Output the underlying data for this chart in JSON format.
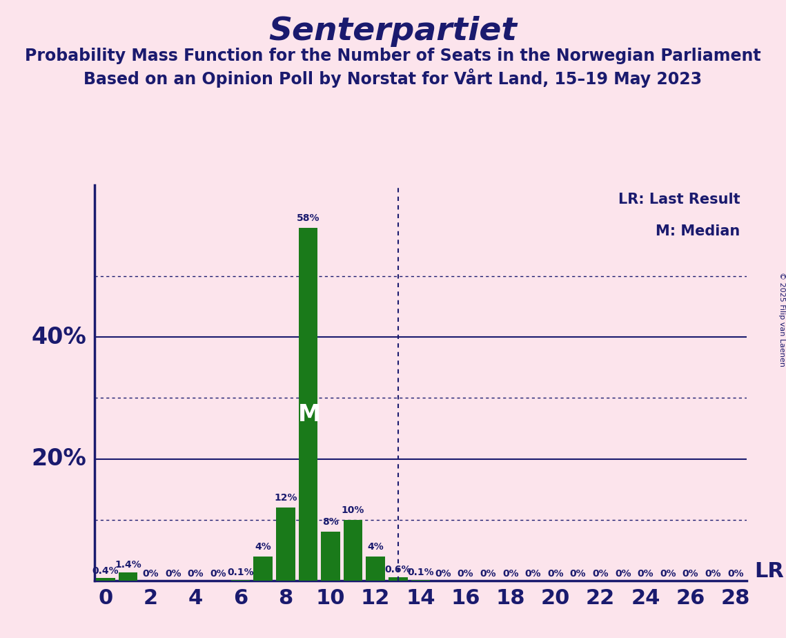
{
  "title": "Senterpartiet",
  "subtitle1": "Probability Mass Function for the Number of Seats in the Norwegian Parliament",
  "subtitle2": "Based on an Opinion Poll by Norstat for Vårt Land, 15–19 May 2023",
  "copyright": "© 2025 Filip van Laenen",
  "background_color": "#fce4ec",
  "bar_color": "#1a7a1a",
  "title_color": "#1a1a6e",
  "axis_color": "#1a1a6e",
  "text_color": "#1a1a6e",
  "seats": [
    0,
    1,
    2,
    3,
    4,
    5,
    6,
    7,
    8,
    9,
    10,
    11,
    12,
    13,
    14,
    15,
    16,
    17,
    18,
    19,
    20,
    21,
    22,
    23,
    24,
    25,
    26,
    27,
    28
  ],
  "probabilities": [
    0.4,
    1.4,
    0,
    0,
    0,
    0,
    0.1,
    4,
    12,
    58,
    8,
    10,
    4,
    0.6,
    0.1,
    0,
    0,
    0,
    0,
    0,
    0,
    0,
    0,
    0,
    0,
    0,
    0,
    0,
    0
  ],
  "labels": [
    "0.4%",
    "1.4%",
    "0%",
    "0%",
    "0%",
    "0%",
    "0.1%",
    "4%",
    "12%",
    "58%",
    "8%",
    "10%",
    "4%",
    "0.6%",
    "0.1%",
    "0%",
    "0%",
    "0%",
    "0%",
    "0%",
    "0%",
    "0%",
    "0%",
    "0%",
    "0%",
    "0%",
    "0%",
    "0%",
    "0%"
  ],
  "median_seat": 9,
  "lr_seat": 13,
  "yticks_solid": [
    20,
    40
  ],
  "yticks_dotted": [
    10,
    30,
    50
  ],
  "ylim": [
    0,
    65
  ],
  "xlim": [
    -0.5,
    28.5
  ],
  "ylabel_fontsize": 24,
  "title_fontsize": 34,
  "subtitle_fontsize": 17,
  "label_fontsize": 10,
  "lr_label": "LR",
  "median_label": "M",
  "lr_legend": "LR: Last Result",
  "m_legend": "M: Median"
}
